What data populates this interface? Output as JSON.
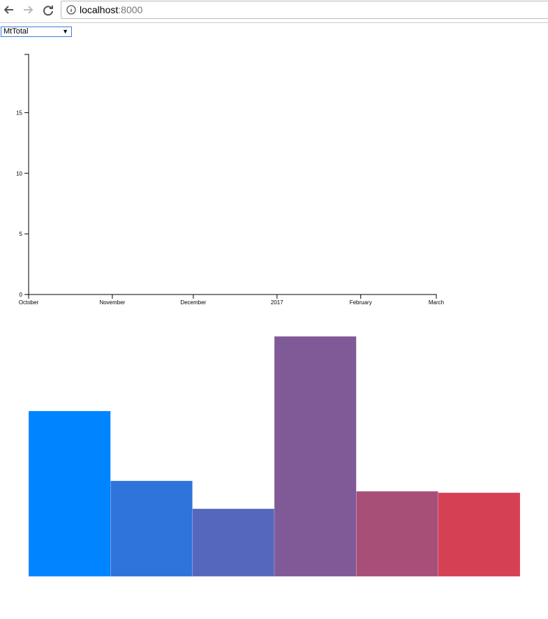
{
  "browser": {
    "url_host": "localhost",
    "url_port": ":8000"
  },
  "dropdown": {
    "selected": "MtTotal"
  },
  "chart_data": [
    {
      "type": "line",
      "series": [],
      "xlim": [
        "2016-10-01",
        "2017-03-01"
      ],
      "xticks": [
        {
          "value": "2016-10-01",
          "label": "October"
        },
        {
          "value": "2016-11-01",
          "label": "November"
        },
        {
          "value": "2016-12-01",
          "label": "December"
        },
        {
          "value": "2017-01-01",
          "label": "2017"
        },
        {
          "value": "2017-02-01",
          "label": "February"
        },
        {
          "value": "2017-03-01",
          "label": "March"
        }
      ],
      "ylim": [
        0,
        19.8
      ],
      "yticks": [
        0,
        5,
        10,
        15
      ]
    },
    {
      "type": "bar",
      "values": [
        237,
        137,
        97,
        344,
        122,
        120
      ],
      "colors": [
        "#0084ff",
        "#2e74da",
        "#5567bd",
        "#805a96",
        "#a84f78",
        "#d64055"
      ],
      "ylim": [
        0,
        344
      ]
    }
  ]
}
